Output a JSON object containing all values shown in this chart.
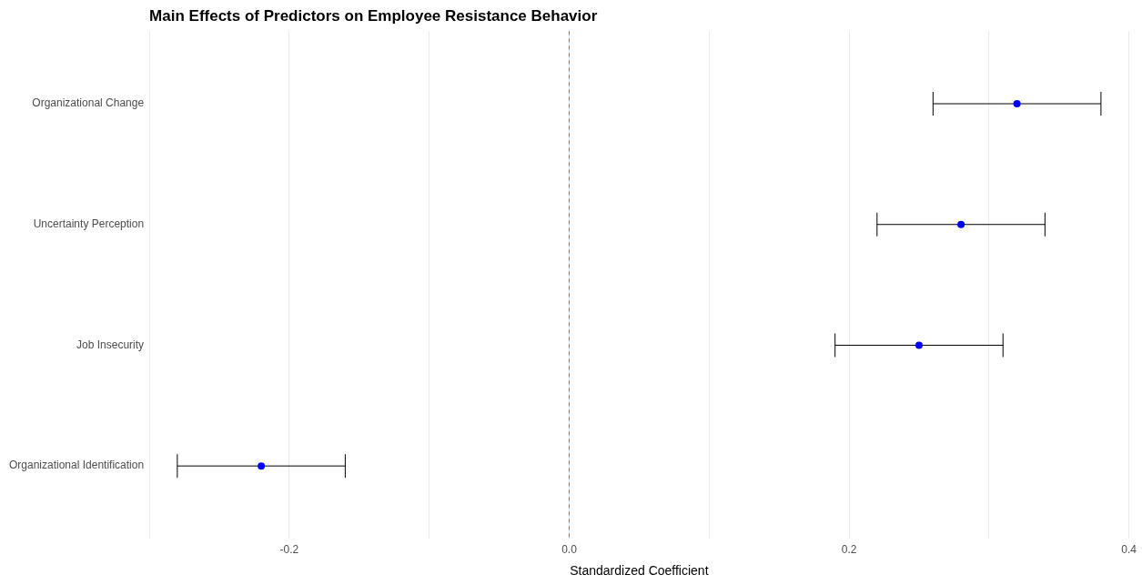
{
  "chart_data": {
    "type": "scatter",
    "title": "Main Effects of Predictors on Employee Resistance Behavior",
    "xlabel": "Standardized Coefficient",
    "orientation": "horizontal",
    "categories": [
      "Organizational Change",
      "Uncertainty Perception",
      "Job Insecurity",
      "Organizational Identification"
    ],
    "series": [
      {
        "color": "#0000ff",
        "values": [
          0.32,
          0.28,
          0.25,
          -0.22
        ],
        "errors": [
          [
            0.26,
            0.38
          ],
          [
            0.22,
            0.34
          ],
          [
            0.19,
            0.31
          ],
          [
            -0.28,
            -0.16
          ]
        ]
      }
    ],
    "xlim": [
      -0.3,
      0.4
    ],
    "xticks": [
      {
        "value": -0.3,
        "label": null
      },
      {
        "value": -0.2,
        "label": "-0.2"
      },
      {
        "value": -0.1,
        "label": null
      },
      {
        "value": 0,
        "label": "0.0"
      },
      {
        "value": 0.1,
        "label": null
      },
      {
        "value": 0.2,
        "label": "0.2"
      },
      {
        "value": 0.3,
        "label": null
      },
      {
        "value": 0.4,
        "label": "0.4"
      }
    ],
    "grid": "x",
    "marker": "circle",
    "legend": false,
    "ref_lines": [
      {
        "axis": "x",
        "value": 0,
        "line_style": "dashed",
        "color": "#b05a5a"
      }
    ]
  }
}
